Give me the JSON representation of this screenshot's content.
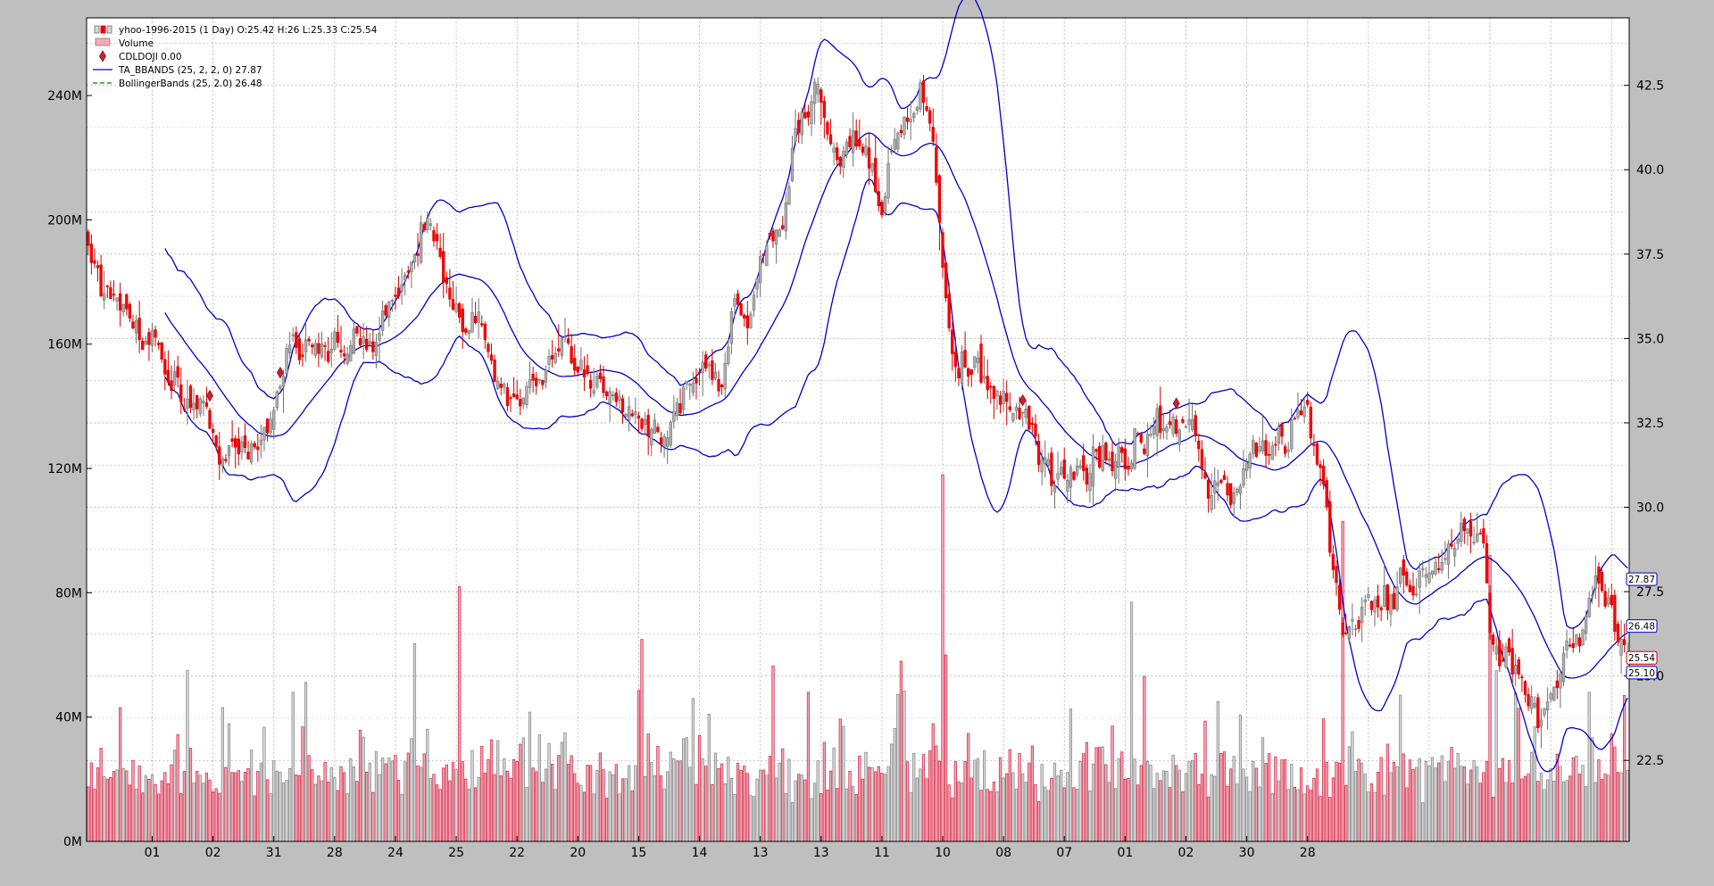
{
  "chart_data": {
    "type": "candlestick",
    "legend": {
      "placement": "top-left",
      "entries": [
        {
          "key": "price",
          "text": "yhoo-1996-2015 (1 Day) O:25.42 H:26 L:25.33 C:25.54"
        },
        {
          "key": "volume",
          "text": "Volume"
        },
        {
          "key": "doji",
          "text": "CDLDOJI 0.00"
        },
        {
          "key": "ta_bbands",
          "text": "TA_BBANDS (25, 2, 2, 0) 27.87"
        },
        {
          "key": "bbands",
          "text": "BollingerBands (25, 2.0) 26.48"
        }
      ]
    },
    "colors": {
      "background": "#bfbfbf",
      "plot": "#ffffff",
      "up_candle": "#b0b0b0",
      "up_candle_edge": "#707070",
      "down_candle": "#ff0000",
      "down_candle_edge": "#cc0000",
      "volume_down": "#f4aab6",
      "volume_down_edge": "#d02040",
      "volume_up": "#d8d8d8",
      "volume_up_edge": "#808080",
      "ta_bbands": "#0000cc",
      "bbands": "#008000",
      "doji": "#cc2030"
    },
    "price_axis": {
      "side": "right",
      "ticks": [
        "22.5",
        "25.0",
        "27.5",
        "30.0",
        "32.5",
        "35.0",
        "37.5",
        "40.0",
        "42.5"
      ],
      "tick_values": [
        22.5,
        25.0,
        27.5,
        30.0,
        32.5,
        35.0,
        37.5,
        40.0,
        42.5
      ],
      "range": [
        20.1,
        44.5
      ]
    },
    "volume_axis": {
      "side": "left",
      "ticks": [
        "0M",
        "40M",
        "80M",
        "120M",
        "160M",
        "200M",
        "240M"
      ],
      "tick_values": [
        0,
        40,
        80,
        120,
        160,
        200,
        240
      ],
      "range": [
        0,
        265
      ]
    },
    "x_ticks": {
      "labels": [
        "01",
        "02",
        "31",
        "28",
        "24",
        "25",
        "22",
        "20",
        "15",
        "14",
        "13",
        "13",
        "11",
        "10",
        "08",
        "07",
        "01",
        "02",
        "30",
        "28"
      ],
      "gridlines_at_bar": [
        20,
        39,
        58,
        77,
        96,
        115,
        134,
        153,
        172,
        191,
        210,
        229,
        248,
        267,
        286,
        305,
        324,
        343,
        362,
        381,
        400,
        419,
        438,
        457,
        476
      ]
    },
    "grid": true,
    "n_bars": 482,
    "last_values": [
      "27.87",
      "26.48",
      "25.54",
      "25.10"
    ],
    "close_keypoints": [
      [
        0,
        37.8
      ],
      [
        8,
        35.8
      ],
      [
        18,
        35.4
      ],
      [
        28,
        33.6
      ],
      [
        34,
        32.8
      ],
      [
        40,
        32.1
      ],
      [
        50,
        31.3
      ],
      [
        56,
        32.2
      ],
      [
        62,
        34.8
      ],
      [
        70,
        35.2
      ],
      [
        80,
        34.5
      ],
      [
        90,
        35.0
      ],
      [
        98,
        37.0
      ],
      [
        104,
        38.2
      ],
      [
        112,
        36.8
      ],
      [
        118,
        36.0
      ],
      [
        124,
        34.8
      ],
      [
        130,
        33.4
      ],
      [
        136,
        33.0
      ],
      [
        144,
        33.9
      ],
      [
        150,
        34.3
      ],
      [
        158,
        33.3
      ],
      [
        166,
        33.8
      ],
      [
        172,
        32.8
      ],
      [
        180,
        32.2
      ],
      [
        186,
        33.3
      ],
      [
        192,
        34.0
      ],
      [
        198,
        33.6
      ],
      [
        202,
        36.0
      ],
      [
        206,
        35.4
      ],
      [
        210,
        37.8
      ],
      [
        216,
        38.2
      ],
      [
        222,
        41.5
      ],
      [
        228,
        42.4
      ],
      [
        234,
        40.2
      ],
      [
        240,
        41.2
      ],
      [
        244,
        40.4
      ],
      [
        248,
        39.2
      ],
      [
        252,
        40.3
      ],
      [
        256,
        41.4
      ],
      [
        260,
        41.9
      ],
      [
        265,
        39.8
      ],
      [
        268,
        35.2
      ],
      [
        272,
        34.0
      ],
      [
        276,
        34.6
      ],
      [
        282,
        33.2
      ],
      [
        288,
        32.8
      ],
      [
        294,
        32.0
      ],
      [
        302,
        30.6
      ],
      [
        308,
        30.8
      ],
      [
        314,
        31.8
      ],
      [
        320,
        31.2
      ],
      [
        326,
        31.6
      ],
      [
        334,
        32.9
      ],
      [
        340,
        32.6
      ],
      [
        346,
        32.2
      ],
      [
        350,
        30.8
      ],
      [
        356,
        30.3
      ],
      [
        362,
        31.1
      ],
      [
        368,
        31.8
      ],
      [
        374,
        32.0
      ],
      [
        380,
        32.7
      ],
      [
        385,
        31.2
      ],
      [
        392,
        26.2
      ],
      [
        398,
        27.2
      ],
      [
        404,
        26.9
      ],
      [
        410,
        27.8
      ],
      [
        416,
        28.0
      ],
      [
        424,
        28.7
      ],
      [
        430,
        28.9
      ],
      [
        436,
        29.0
      ],
      [
        438,
        26.2
      ],
      [
        442,
        25.4
      ],
      [
        446,
        25.2
      ],
      [
        450,
        23.4
      ],
      [
        454,
        23.3
      ],
      [
        456,
        24.0
      ],
      [
        460,
        25.6
      ],
      [
        466,
        26.5
      ],
      [
        472,
        27.8
      ],
      [
        478,
        26.2
      ],
      [
        481,
        25.54
      ]
    ]
  }
}
